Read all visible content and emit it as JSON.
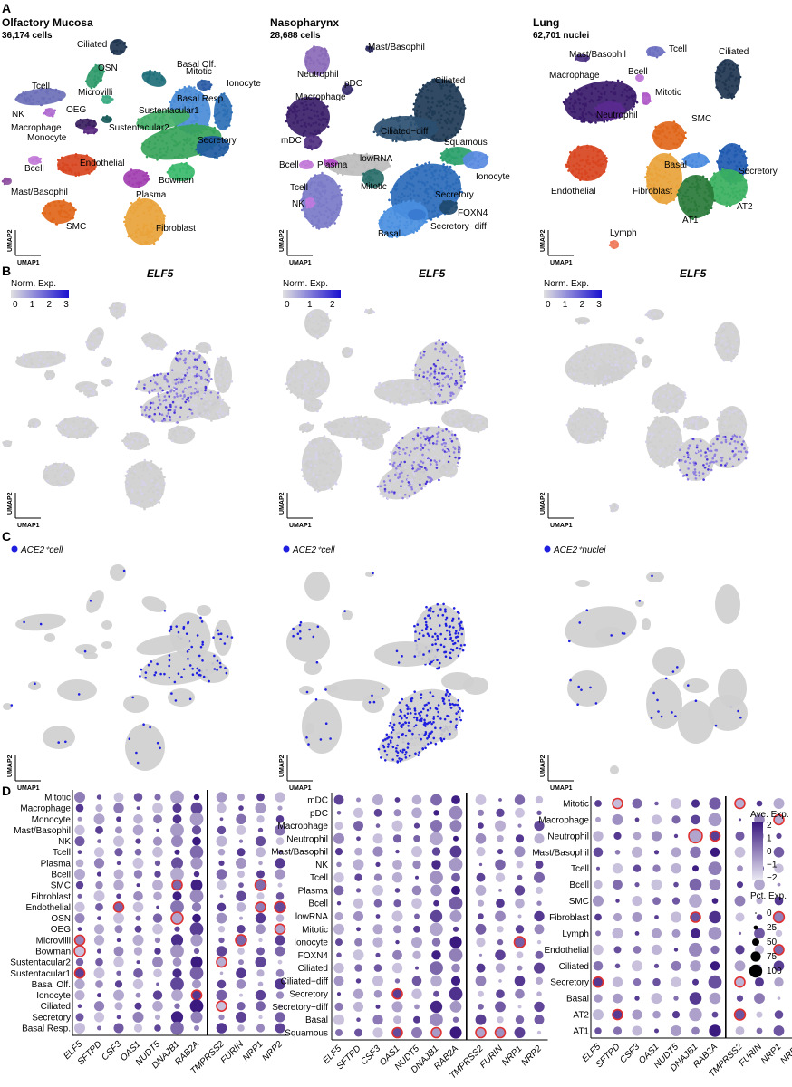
{
  "panels": {
    "A": "A",
    "B": "B",
    "C": "C",
    "D": "D"
  },
  "axes": {
    "x": "UMAP1",
    "y": "UMAP2"
  },
  "colors": {
    "gray": "#cfcfcf",
    "ace2": "#1f1fe0",
    "expr_low": "#d7d2ea",
    "expr_high": "#2a1fd6",
    "ring": "#e03030",
    "dot_high": "#3b1a80",
    "dot_low": "#e3e0ee"
  },
  "tissues": [
    {
      "name": "Olfactory Mucosa",
      "count": "36,174 cells",
      "clusters": [
        {
          "label": "Ciliated",
          "color": "#1f3550"
        },
        {
          "label": "Basal Olf.",
          "color": "#1f6f7a"
        },
        {
          "label": "OSN",
          "color": "#2e9a6a"
        },
        {
          "label": "Mitotic",
          "color": "#2b5ca6"
        },
        {
          "label": "Microvilli",
          "color": "#3aaa82"
        },
        {
          "label": "Basal Resp",
          "color": "#4a8bd6"
        },
        {
          "label": "Ionocyte",
          "color": "#2d6fb5"
        },
        {
          "label": "Tcell",
          "color": "#6c6fb8"
        },
        {
          "label": "OEG",
          "color": "#1a5b5b"
        },
        {
          "label": "Sustentacular1",
          "color": "#46b06a"
        },
        {
          "label": "NK",
          "color": "#b06bd0"
        },
        {
          "label": "Sustentacular2",
          "color": "#37a35a"
        },
        {
          "label": "Macrophage",
          "color": "#3a1f60"
        },
        {
          "label": "Secretory",
          "color": "#1f5aa0"
        },
        {
          "label": "Monocyte",
          "color": "#5a2b80"
        },
        {
          "label": "Bcell",
          "color": "#c27ad8"
        },
        {
          "label": "Endothelial",
          "color": "#d8451f"
        },
        {
          "label": "Bowman",
          "color": "#38b86a"
        },
        {
          "label": "Mast/Basophil",
          "color": "#8e4fa0"
        },
        {
          "label": "Plasma",
          "color": "#a23fb0"
        },
        {
          "label": "SMC",
          "color": "#e0661a"
        },
        {
          "label": "Fibroblast",
          "color": "#e9a33a"
        }
      ]
    },
    {
      "name": "Nasopharynx",
      "count": "28,688 cells",
      "clusters": [
        {
          "label": "Mast/Basophil",
          "color": "#2b2b60"
        },
        {
          "label": "Neutrophil",
          "color": "#8a6ab8"
        },
        {
          "label": "pDC",
          "color": "#3a2f70"
        },
        {
          "label": "Ciliated",
          "color": "#1f3a55"
        },
        {
          "label": "Macrophage",
          "color": "#3b1f6a"
        },
        {
          "label": "Ciliated−diff",
          "color": "#2b4f70"
        },
        {
          "label": "mDC",
          "color": "#4f2f80"
        },
        {
          "label": "Squamous",
          "color": "#2aa06a"
        },
        {
          "label": "lowRNA",
          "color": "#bdbdbd"
        },
        {
          "label": "Bcell",
          "color": "#c27ad8"
        },
        {
          "label": "Plasma",
          "color": "#b54fc8"
        },
        {
          "label": "Ionocyte",
          "color": "#5a8be0"
        },
        {
          "label": "Tcell",
          "color": "#7a7ac8"
        },
        {
          "label": "Mitotic",
          "color": "#2a6f6a"
        },
        {
          "label": "Secretory",
          "color": "#2a6ab8"
        },
        {
          "label": "FOXN4",
          "color": "#1f4a70"
        },
        {
          "label": "NK",
          "color": "#c07ae0"
        },
        {
          "label": "Basal",
          "color": "#4a8fe0"
        },
        {
          "label": "Secretory−diff",
          "color": "#3a7ad0"
        }
      ]
    },
    {
      "name": "Lung",
      "count": "62,701 nuclei",
      "clusters": [
        {
          "label": "Mast/Basophil",
          "color": "#4a3080"
        },
        {
          "label": "Tcell",
          "color": "#6c6fc0"
        },
        {
          "label": "Ciliated",
          "color": "#1f3550"
        },
        {
          "label": "Bcell",
          "color": "#c07ad8"
        },
        {
          "label": "Macrophage",
          "color": "#3a1a6a"
        },
        {
          "label": "Mitotic",
          "color": "#b05ac8"
        },
        {
          "label": "Neutrophil",
          "color": "#5a2a90"
        },
        {
          "label": "SMC",
          "color": "#e0661a"
        },
        {
          "label": "Basal",
          "color": "#4a8be0"
        },
        {
          "label": "Secretory",
          "color": "#1f5ab0"
        },
        {
          "label": "Endothelial",
          "color": "#d8451f"
        },
        {
          "label": "Fibroblast",
          "color": "#e9a33a"
        },
        {
          "label": "AT2",
          "color": "#3ab060"
        },
        {
          "label": "AT1",
          "color": "#2a7a3a"
        },
        {
          "label": "Lymph",
          "color": "#f07a5a"
        }
      ]
    }
  ],
  "gene_panel": {
    "gene": "ELF5",
    "legend_title": "Norm. Exp.",
    "ticks": [
      [
        "0",
        "1",
        "2",
        "3"
      ],
      [
        "0",
        "1",
        "2"
      ],
      [
        "0",
        "1",
        "2",
        "3"
      ]
    ]
  },
  "ace2_panel": {
    "labels": [
      "ACE2⁺cell",
      "ACE2⁺cell",
      "ACE2⁺nuclei"
    ]
  },
  "chart_data": {
    "type": "dotplot",
    "genes": [
      "ELF5",
      "SFTPD",
      "CSF3",
      "OAS1",
      "NUDT5",
      "DNAJB1",
      "RAB2A",
      "TMPRSS2",
      "FURIN",
      "NRP1",
      "NRP2"
    ],
    "color_legend": {
      "title": "Ave. Exp.",
      "ticks": [
        "2",
        "1",
        "0",
        "−1",
        "−2"
      ]
    },
    "size_legend": {
      "title": "Pct. Exp.",
      "ticks": [
        "0",
        "25",
        "50",
        "75",
        "100"
      ]
    },
    "plots": [
      {
        "rows": [
          "Mitotic",
          "Macrophage",
          "Monocyte",
          "Mast/Basophil",
          "NK",
          "Tcell",
          "Plasma",
          "Bcell",
          "SMC",
          "Fibroblast",
          "Endothelial",
          "OSN",
          "OEG",
          "Microvilli",
          "Bowman",
          "Sustentacular2",
          "Sustentacular1",
          "Basal Olf.",
          "Ionocyte",
          "Ciliated",
          "Secretory",
          "Basal Resp."
        ],
        "highlights": [
          {
            "row": "SMC",
            "gene": "DNAJB1"
          },
          {
            "row": "SMC",
            "gene": "NRP1"
          },
          {
            "row": "Endothelial",
            "gene": "CSF3"
          },
          {
            "row": "Endothelial",
            "gene": "NRP1"
          },
          {
            "row": "Endothelial",
            "gene": "NRP2"
          },
          {
            "row": "OSN",
            "gene": "DNAJB1"
          },
          {
            "row": "OEG",
            "gene": "NRP2"
          },
          {
            "row": "Microvilli",
            "gene": "ELF5"
          },
          {
            "row": "Microvilli",
            "gene": "FURIN"
          },
          {
            "row": "Bowman",
            "gene": "ELF5"
          },
          {
            "row": "Sustentacular2",
            "gene": "TMPRSS2"
          },
          {
            "row": "Sustentacular1",
            "gene": "ELF5"
          },
          {
            "row": "Ionocyte",
            "gene": "RAB2A"
          },
          {
            "row": "Ciliated",
            "gene": "TMPRSS2"
          }
        ]
      },
      {
        "rows": [
          "mDC",
          "pDC",
          "Macrophage",
          "Neutrophil",
          "Mast/Basophil",
          "NK",
          "Tcell",
          "Plasma",
          "Bcell",
          "lowRNA",
          "Mitotic",
          "Ionocyte",
          "FOXN4",
          "Ciliated",
          "Ciliated−diff",
          "Secretory",
          "Secretory−diff",
          "Basal",
          "Squamous"
        ],
        "highlights": [
          {
            "row": "Ionocyte",
            "gene": "NRP1"
          },
          {
            "row": "Secretory",
            "gene": "OAS1"
          },
          {
            "row": "Squamous",
            "gene": "OAS1"
          },
          {
            "row": "Squamous",
            "gene": "DNAJB1"
          },
          {
            "row": "Squamous",
            "gene": "TMPRSS2"
          },
          {
            "row": "Squamous",
            "gene": "FURIN"
          }
        ]
      },
      {
        "rows": [
          "Mitotic",
          "Macrophage",
          "Neutrophil",
          "Mast/Basophil",
          "Tcell",
          "Bcell",
          "SMC",
          "Fibroblast",
          "Lymph",
          "Endothelial",
          "Ciliated",
          "Secretory",
          "Basal",
          "AT2",
          "AT1"
        ],
        "highlights": [
          {
            "row": "Mitotic",
            "gene": "SFTPD"
          },
          {
            "row": "Mitotic",
            "gene": "TMPRSS2"
          },
          {
            "row": "Macrophage",
            "gene": "NRP1"
          },
          {
            "row": "Macrophage",
            "gene": "NRP2"
          },
          {
            "row": "Neutrophil",
            "gene": "DNAJB1"
          },
          {
            "row": "Neutrophil",
            "gene": "RAB2A"
          },
          {
            "row": "Fibroblast",
            "gene": "DNAJB1"
          },
          {
            "row": "Fibroblast",
            "gene": "NRP1"
          },
          {
            "row": "Endothelial",
            "gene": "NRP1"
          },
          {
            "row": "Secretory",
            "gene": "ELF5"
          },
          {
            "row": "Secretory",
            "gene": "TMPRSS2"
          },
          {
            "row": "AT2",
            "gene": "SFTPD"
          },
          {
            "row": "AT2",
            "gene": "TMPRSS2"
          }
        ]
      }
    ]
  }
}
